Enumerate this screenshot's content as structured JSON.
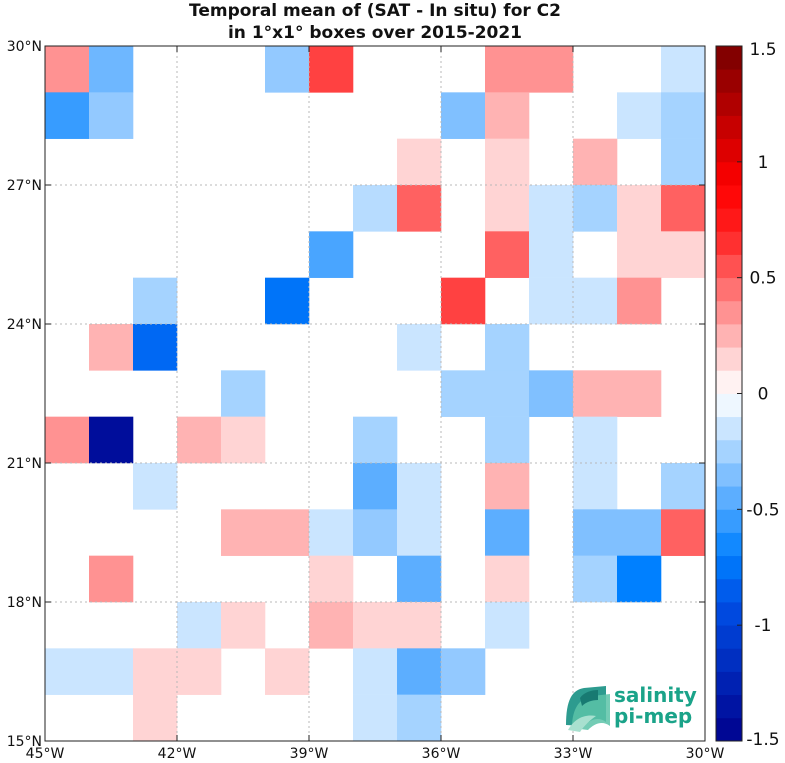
{
  "logo": {
    "line1": "salinity",
    "line2": "pi-mep"
  },
  "chart_data": {
    "type": "heatmap",
    "title": [
      "Temporal mean of (SAT - In situ) for C2",
      "in 1°x1° boxes over 2015-2021"
    ],
    "xlim": [
      -45,
      -30
    ],
    "ylim": [
      15,
      30
    ],
    "x_ticks": [
      -45,
      -42,
      -39,
      -36,
      -33,
      -30
    ],
    "x_tick_labels": [
      "45°W",
      "42°W",
      "39°W",
      "36°W",
      "33°W",
      "30°W"
    ],
    "y_ticks": [
      15,
      18,
      21,
      24,
      27,
      30
    ],
    "y_tick_labels": [
      "15°N",
      "18°N",
      "21°N",
      "24°N",
      "27°N",
      "30°N"
    ],
    "grid": true,
    "colorbar": {
      "range": [
        -1.5,
        1.5
      ],
      "ticks": [
        -1.5,
        -1,
        -0.5,
        0,
        0.5,
        1,
        1.5
      ],
      "tick_labels": [
        "-1.5",
        "-1",
        "-0.5",
        "0",
        "0.5",
        "1",
        "1.5"
      ],
      "n_levels": 30,
      "placement": "right"
    },
    "colormap": {
      "stops": [
        {
          "v": -1.5,
          "color": "#00008c"
        },
        {
          "v": -0.9,
          "color": "#0050e6"
        },
        {
          "v": -0.7,
          "color": "#0080ff"
        },
        {
          "v": -0.1,
          "color": "#dceeff"
        },
        {
          "v": 0.0,
          "color": "#ffffff"
        },
        {
          "v": 0.1,
          "color": "#ffe4e4"
        },
        {
          "v": 0.7,
          "color": "#ff2020"
        },
        {
          "v": 0.9,
          "color": "#ff0000"
        },
        {
          "v": 1.5,
          "color": "#780000"
        }
      ]
    },
    "cells_note": "lon_w and lat_s are lower-left corners of 1x1 degree boxes; value in psu",
    "cells": [
      {
        "lon": -45,
        "lat": 29,
        "value": 0.35
      },
      {
        "lon": -44,
        "lat": 29,
        "value": -0.4
      },
      {
        "lon": -40,
        "lat": 29,
        "value": -0.3
      },
      {
        "lon": -39,
        "lat": 29,
        "value": 0.6
      },
      {
        "lon": -35,
        "lat": 29,
        "value": 0.35
      },
      {
        "lon": -34,
        "lat": 29,
        "value": 0.35
      },
      {
        "lon": -31,
        "lat": 29,
        "value": -0.15
      },
      {
        "lon": -45,
        "lat": 28,
        "value": -0.55
      },
      {
        "lon": -44,
        "lat": 28,
        "value": -0.3
      },
      {
        "lon": -36,
        "lat": 28,
        "value": -0.35
      },
      {
        "lon": -35,
        "lat": 28,
        "value": 0.25
      },
      {
        "lon": -32,
        "lat": 28,
        "value": -0.15
      },
      {
        "lon": -31,
        "lat": 28,
        "value": -0.25
      },
      {
        "lon": -37,
        "lat": 27,
        "value": 0.15
      },
      {
        "lon": -35,
        "lat": 27,
        "value": 0.15
      },
      {
        "lon": -33,
        "lat": 27,
        "value": 0.25
      },
      {
        "lon": -31,
        "lat": 27,
        "value": -0.25
      },
      {
        "lon": -38,
        "lat": 26,
        "value": -0.2
      },
      {
        "lon": -37,
        "lat": 26,
        "value": 0.5
      },
      {
        "lon": -35,
        "lat": 26,
        "value": 0.15
      },
      {
        "lon": -34,
        "lat": 26,
        "value": -0.15
      },
      {
        "lon": -33,
        "lat": 26,
        "value": -0.25
      },
      {
        "lon": -32,
        "lat": 26,
        "value": 0.15
      },
      {
        "lon": -31,
        "lat": 26,
        "value": 0.5
      },
      {
        "lon": -39,
        "lat": 25,
        "value": -0.5
      },
      {
        "lon": -35,
        "lat": 25,
        "value": 0.5
      },
      {
        "lon": -34,
        "lat": 25,
        "value": -0.15
      },
      {
        "lon": -32,
        "lat": 25,
        "value": 0.15
      },
      {
        "lon": -31,
        "lat": 25,
        "value": 0.15
      },
      {
        "lon": -43,
        "lat": 24,
        "value": -0.25
      },
      {
        "lon": -40,
        "lat": 24,
        "value": -0.75
      },
      {
        "lon": -36,
        "lat": 24,
        "value": 0.6
      },
      {
        "lon": -34,
        "lat": 24,
        "value": -0.15
      },
      {
        "lon": -33,
        "lat": 24,
        "value": -0.15
      },
      {
        "lon": -32,
        "lat": 24,
        "value": 0.35
      },
      {
        "lon": -44,
        "lat": 23,
        "value": 0.25
      },
      {
        "lon": -43,
        "lat": 23,
        "value": -0.8
      },
      {
        "lon": -37,
        "lat": 23,
        "value": -0.15
      },
      {
        "lon": -35,
        "lat": 23,
        "value": -0.25
      },
      {
        "lon": -41,
        "lat": 22,
        "value": -0.25
      },
      {
        "lon": -36,
        "lat": 22,
        "value": -0.25
      },
      {
        "lon": -35,
        "lat": 22,
        "value": -0.25
      },
      {
        "lon": -34,
        "lat": 22,
        "value": -0.35
      },
      {
        "lon": -33,
        "lat": 22,
        "value": 0.25
      },
      {
        "lon": -32,
        "lat": 22,
        "value": 0.25
      },
      {
        "lon": -45,
        "lat": 21,
        "value": 0.35
      },
      {
        "lon": -44,
        "lat": 21,
        "value": -1.4
      },
      {
        "lon": -42,
        "lat": 21,
        "value": 0.25
      },
      {
        "lon": -41,
        "lat": 21,
        "value": 0.15
      },
      {
        "lon": -38,
        "lat": 21,
        "value": -0.25
      },
      {
        "lon": -35,
        "lat": 21,
        "value": -0.25
      },
      {
        "lon": -33,
        "lat": 21,
        "value": -0.15
      },
      {
        "lon": -43,
        "lat": 20,
        "value": -0.15
      },
      {
        "lon": -38,
        "lat": 20,
        "value": -0.45
      },
      {
        "lon": -37,
        "lat": 20,
        "value": -0.15
      },
      {
        "lon": -35,
        "lat": 20,
        "value": 0.25
      },
      {
        "lon": -33,
        "lat": 20,
        "value": -0.15
      },
      {
        "lon": -31,
        "lat": 20,
        "value": -0.25
      },
      {
        "lon": -41,
        "lat": 19,
        "value": 0.25
      },
      {
        "lon": -40,
        "lat": 19,
        "value": 0.25
      },
      {
        "lon": -39,
        "lat": 19,
        "value": -0.15
      },
      {
        "lon": -38,
        "lat": 19,
        "value": -0.3
      },
      {
        "lon": -37,
        "lat": 19,
        "value": -0.15
      },
      {
        "lon": -35,
        "lat": 19,
        "value": -0.45
      },
      {
        "lon": -33,
        "lat": 19,
        "value": -0.35
      },
      {
        "lon": -32,
        "lat": 19,
        "value": -0.35
      },
      {
        "lon": -31,
        "lat": 19,
        "value": 0.5
      },
      {
        "lon": -44,
        "lat": 18,
        "value": 0.35
      },
      {
        "lon": -39,
        "lat": 18,
        "value": 0.15
      },
      {
        "lon": -37,
        "lat": 18,
        "value": -0.45
      },
      {
        "lon": -35,
        "lat": 18,
        "value": 0.15
      },
      {
        "lon": -33,
        "lat": 18,
        "value": -0.25
      },
      {
        "lon": -32,
        "lat": 18,
        "value": -0.7
      },
      {
        "lon": -42,
        "lat": 17,
        "value": -0.15
      },
      {
        "lon": -41,
        "lat": 17,
        "value": 0.15
      },
      {
        "lon": -39,
        "lat": 17,
        "value": 0.25
      },
      {
        "lon": -38,
        "lat": 17,
        "value": 0.15
      },
      {
        "lon": -37,
        "lat": 17,
        "value": 0.15
      },
      {
        "lon": -35,
        "lat": 17,
        "value": -0.15
      },
      {
        "lon": -45,
        "lat": 16,
        "value": -0.15
      },
      {
        "lon": -44,
        "lat": 16,
        "value": -0.15
      },
      {
        "lon": -43,
        "lat": 16,
        "value": 0.15
      },
      {
        "lon": -42,
        "lat": 16,
        "value": 0.15
      },
      {
        "lon": -40,
        "lat": 16,
        "value": 0.15
      },
      {
        "lon": -38,
        "lat": 16,
        "value": -0.15
      },
      {
        "lon": -37,
        "lat": 16,
        "value": -0.45
      },
      {
        "lon": -36,
        "lat": 16,
        "value": -0.3
      },
      {
        "lon": -43,
        "lat": 15,
        "value": 0.15
      },
      {
        "lon": -38,
        "lat": 15,
        "value": -0.15
      },
      {
        "lon": -37,
        "lat": 15,
        "value": -0.25
      }
    ]
  }
}
